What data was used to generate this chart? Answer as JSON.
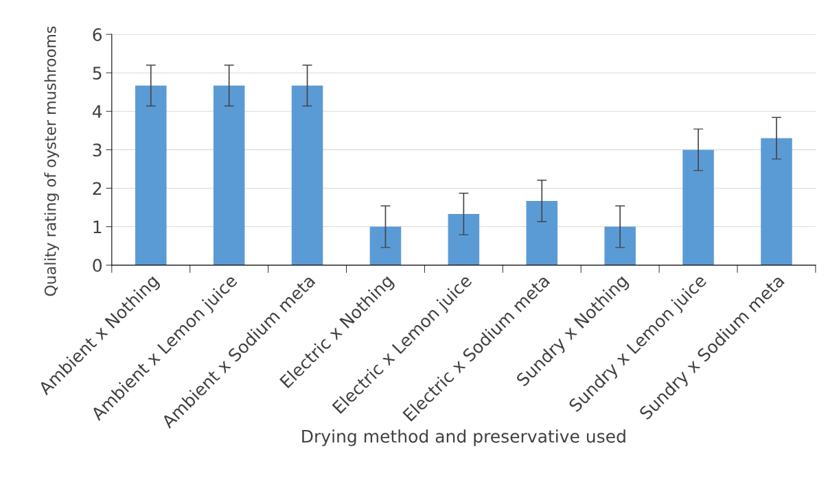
{
  "chart_data": {
    "type": "bar",
    "xlabel": "Drying method and preservative used",
    "ylabel": "Quality rating of oyster mushrooms",
    "categories": [
      "Ambient x Nothing",
      "Ambient x Lemon juice",
      "Ambient x Sodium meta",
      "Electric x Nothing",
      "Electric x Lemon juice",
      "Electric x Sodium meta",
      "Sundry x Nothing",
      "Sundry x Lemon juice",
      "Sundry x Sodium meta"
    ],
    "values": [
      4.67,
      4.67,
      4.67,
      1.0,
      1.33,
      1.67,
      1.0,
      3.0,
      3.3
    ],
    "errors": [
      0.53,
      0.53,
      0.53,
      0.54,
      0.54,
      0.54,
      0.54,
      0.54,
      0.54
    ],
    "color": "#5b9bd5",
    "ylim": [
      0,
      6
    ],
    "yticks": [
      0,
      1,
      2,
      3,
      4,
      5,
      6
    ],
    "grid": "y"
  }
}
